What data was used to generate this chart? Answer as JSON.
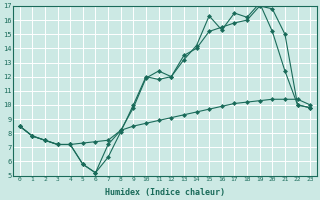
{
  "xlabel": "Humidex (Indice chaleur)",
  "xlim": [
    -0.5,
    23.5
  ],
  "ylim": [
    5,
    17
  ],
  "yticks": [
    5,
    6,
    7,
    8,
    9,
    10,
    11,
    12,
    13,
    14,
    15,
    16,
    17
  ],
  "xticks": [
    0,
    1,
    2,
    3,
    4,
    5,
    6,
    7,
    8,
    9,
    10,
    11,
    12,
    13,
    14,
    15,
    16,
    17,
    18,
    19,
    20,
    21,
    22,
    23
  ],
  "bg_color": "#cce9e4",
  "grid_color": "#ffffff",
  "line_color": "#1a6b5a",
  "line1_x": [
    0,
    1,
    2,
    3,
    4,
    5,
    6,
    7,
    8,
    9,
    10,
    11,
    12,
    13,
    14,
    15,
    16,
    17,
    18,
    19,
    20,
    21,
    22,
    23
  ],
  "line1_y": [
    8.5,
    7.8,
    7.5,
    7.2,
    7.2,
    5.8,
    5.2,
    6.3,
    8.1,
    10.0,
    12.0,
    11.8,
    12.0,
    13.2,
    14.2,
    16.3,
    15.3,
    16.5,
    16.2,
    17.2,
    15.2,
    12.4,
    10.0,
    9.8
  ],
  "line2_x": [
    0,
    1,
    2,
    3,
    4,
    5,
    6,
    7,
    8,
    9,
    10,
    11,
    12,
    13,
    14,
    15,
    16,
    17,
    18,
    19,
    20,
    21,
    22,
    23
  ],
  "line2_y": [
    8.5,
    7.8,
    7.5,
    7.2,
    7.2,
    5.8,
    5.2,
    7.2,
    8.2,
    9.8,
    11.9,
    12.4,
    12.0,
    13.5,
    14.0,
    15.2,
    15.5,
    15.8,
    16.0,
    17.0,
    16.8,
    15.0,
    10.0,
    9.8
  ],
  "line3_x": [
    0,
    1,
    2,
    3,
    4,
    5,
    6,
    7,
    8,
    9,
    10,
    11,
    12,
    13,
    14,
    15,
    16,
    17,
    18,
    19,
    20,
    21,
    22,
    23
  ],
  "line3_y": [
    8.5,
    7.8,
    7.5,
    7.2,
    7.2,
    7.3,
    7.4,
    7.5,
    8.2,
    8.5,
    8.7,
    8.9,
    9.1,
    9.3,
    9.5,
    9.7,
    9.9,
    10.1,
    10.2,
    10.3,
    10.4,
    10.4,
    10.4,
    10.0
  ]
}
